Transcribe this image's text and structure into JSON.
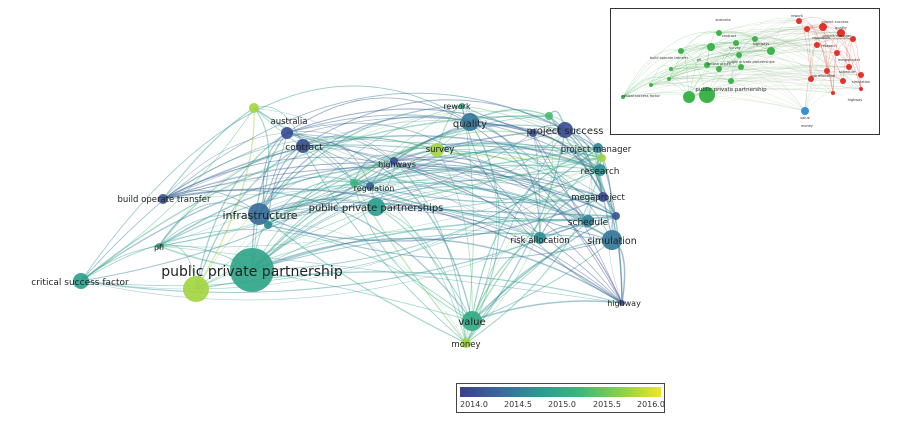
{
  "main_nodes": [
    {
      "id": "ppp",
      "label": "public private partnership",
      "year": 2015.3,
      "size": 22
    },
    {
      "id": "ppp_yellow",
      "label": "",
      "year": 2016.0,
      "size": 13
    },
    {
      "id": "quality",
      "label": "quality",
      "year": 2014.7,
      "size": 9
    },
    {
      "id": "rework",
      "label": "rework",
      "year": 2015.4,
      "size": 3
    },
    {
      "id": "project_success",
      "label": "project success",
      "year": 2014.2,
      "size": 8
    },
    {
      "id": "project_manager",
      "label": "project manager",
      "year": 2014.9,
      "size": 5
    },
    {
      "id": "australia",
      "label": "australia",
      "year": 2014.2,
      "size": 6
    },
    {
      "id": "contract",
      "label": "contract",
      "year": 2014.2,
      "size": 7
    },
    {
      "id": "survey",
      "label": "survey",
      "year": 2016.0,
      "size": 7
    },
    {
      "id": "highways",
      "label": "highways",
      "year": 2014.2,
      "size": 4
    },
    {
      "id": "regulation",
      "label": "regulation",
      "year": 2014.5,
      "size": 4
    },
    {
      "id": "research",
      "label": "research",
      "year": 2015.0,
      "size": 6
    },
    {
      "id": "megaproject",
      "label": "megaproject",
      "year": 2014.2,
      "size": 5
    },
    {
      "id": "schedule",
      "label": "schedule",
      "year": 2014.8,
      "size": 6
    },
    {
      "id": "simulation",
      "label": "simulation",
      "year": 2014.7,
      "size": 10
    },
    {
      "id": "risk_allocation",
      "label": "risk allocation",
      "year": 2015.0,
      "size": 6
    },
    {
      "id": "highway",
      "label": "highway",
      "year": 2014.2,
      "size": 3
    },
    {
      "id": "bot",
      "label": "build operate transfer",
      "year": 2014.3,
      "size": 5
    },
    {
      "id": "infrastructure",
      "label": "infrastructure",
      "year": 2014.6,
      "size": 11
    },
    {
      "id": "pp_partnerships",
      "label": "public private partnerships",
      "year": 2015.2,
      "size": 9
    },
    {
      "id": "pfi",
      "label": "pfi",
      "year": 2015.4,
      "size": 3
    },
    {
      "id": "csf",
      "label": "critical success factor",
      "year": 2015.2,
      "size": 8
    },
    {
      "id": "value",
      "label": "value",
      "year": 2015.4,
      "size": 10
    },
    {
      "id": "money",
      "label": "money",
      "year": 2016.0,
      "size": 5
    },
    {
      "id": "extra1",
      "label": "",
      "year": 2016.0,
      "size": 5
    },
    {
      "id": "extra2",
      "label": "",
      "year": 2015.7,
      "size": 4
    },
    {
      "id": "extra3",
      "label": "",
      "year": 2014.3,
      "size": 4
    },
    {
      "id": "extra4",
      "label": "",
      "year": 2016.0,
      "size": 4
    },
    {
      "id": "extra5",
      "label": "",
      "year": 2014.2,
      "size": 4
    },
    {
      "id": "extra6",
      "label": "",
      "year": 2015.6,
      "size": 4
    },
    {
      "id": "extra7",
      "label": "",
      "year": 2014.9,
      "size": 4
    }
  ],
  "inset_labels": [
    "australia",
    "contract",
    "rework",
    "project success",
    "project manager",
    "research",
    "megaproject",
    "schedule",
    "simulation",
    "risk allocation",
    "highway",
    "build operate transfer",
    "infrastructure",
    "public private partnerships",
    "critical success factor",
    "public private partnership",
    "value",
    "money",
    "quality",
    "survey",
    "regulation",
    "highways",
    "pfi"
  ],
  "colorbar": {
    "ticks": [
      "2014.0",
      "2014.5",
      "2015.0",
      "2015.5",
      "2016.0"
    ],
    "min": 2014.0,
    "max": 2016.2
  },
  "colors": {
    "cluster_green": "#3cb44b",
    "cluster_red": "#e6302a",
    "cluster_blue": "#3a8fd6"
  }
}
